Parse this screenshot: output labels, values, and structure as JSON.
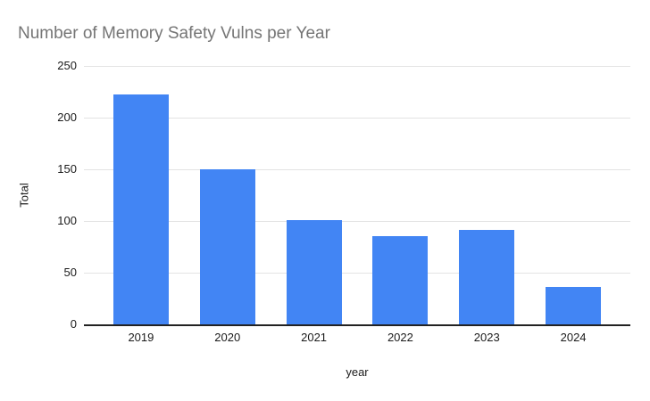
{
  "title": "Number of Memory Safety Vulns per Year",
  "chart_data": {
    "type": "bar",
    "title": "Number of Memory Safety Vulns per Year",
    "categories": [
      "2019",
      "2020",
      "2021",
      "2022",
      "2023",
      "2024"
    ],
    "values": [
      222,
      150,
      101,
      85,
      91,
      36
    ],
    "xlabel": "year",
    "ylabel": "Total",
    "ylim": [
      0,
      250
    ],
    "yticks": [
      0,
      50,
      100,
      150,
      200,
      250
    ],
    "grid": true,
    "legend": "none",
    "colors": {
      "bar": "#4285f4",
      "title_text": "#757575",
      "axis_text": "#1a1a1a",
      "gridline": "#e3e3e3",
      "baseline": "#222222",
      "background": "#ffffff"
    }
  }
}
